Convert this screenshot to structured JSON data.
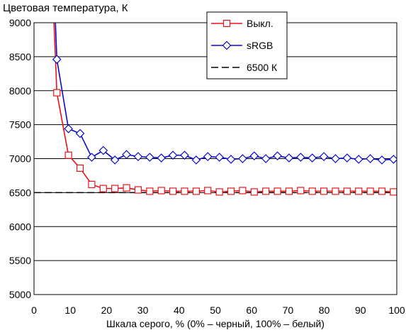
{
  "chart_data": {
    "type": "line",
    "title": "Цветовая температура, К",
    "xlabel": "Шкала серого, % (0% – черный, 100% – белый)",
    "ylabel": "",
    "xlim": [
      0,
      100
    ],
    "ylim": [
      5000,
      9000
    ],
    "x_ticks": [
      0,
      10,
      20,
      30,
      40,
      50,
      60,
      70,
      80,
      90,
      100
    ],
    "y_ticks": [
      5000,
      5500,
      6000,
      6500,
      7000,
      7500,
      8000,
      8500,
      9000
    ],
    "grid": "horizontal",
    "legend_position": "top-right",
    "series": [
      {
        "name": "Выкл.",
        "color": "#e8141b",
        "marker": "square",
        "x": [
          5.5,
          6.3,
          9.5,
          12.7,
          15.9,
          19.1,
          22.3,
          25.5,
          28.7,
          31.9,
          35.1,
          38.3,
          41.5,
          44.7,
          47.9,
          51.1,
          54.3,
          57.5,
          60.7,
          63.9,
          67.1,
          70.3,
          73.5,
          76.7,
          79.9,
          83.1,
          86.3,
          89.5,
          92.7,
          95.9,
          99.1
        ],
        "y": [
          9000,
          7970,
          7050,
          6860,
          6620,
          6560,
          6560,
          6570,
          6540,
          6520,
          6530,
          6520,
          6520,
          6520,
          6530,
          6510,
          6520,
          6530,
          6510,
          6520,
          6520,
          6520,
          6530,
          6520,
          6520,
          6520,
          6520,
          6520,
          6520,
          6520,
          6510
        ]
      },
      {
        "name": "sRGB",
        "color": "#0a0ac8",
        "marker": "diamond",
        "x": [
          5.9,
          6.3,
          9.5,
          12.7,
          15.9,
          19.1,
          22.3,
          25.5,
          28.7,
          31.9,
          35.1,
          38.3,
          41.5,
          44.7,
          47.9,
          51.1,
          54.3,
          57.5,
          60.7,
          63.9,
          67.1,
          70.3,
          73.5,
          76.7,
          79.9,
          83.1,
          86.3,
          89.5,
          92.7,
          95.9,
          99.1
        ],
        "y": [
          9000,
          8460,
          7440,
          7370,
          7020,
          7120,
          6980,
          7060,
          7030,
          7020,
          7010,
          7050,
          7050,
          6980,
          7030,
          7020,
          6990,
          7000,
          7040,
          7000,
          7040,
          7010,
          7020,
          7010,
          7030,
          7000,
          7010,
          6990,
          7000,
          6980,
          6990
        ]
      },
      {
        "name": "6500 К",
        "color": "#000000",
        "marker": "none",
        "dash": true,
        "x": [
          0,
          100
        ],
        "y": [
          6500,
          6500
        ]
      }
    ]
  }
}
